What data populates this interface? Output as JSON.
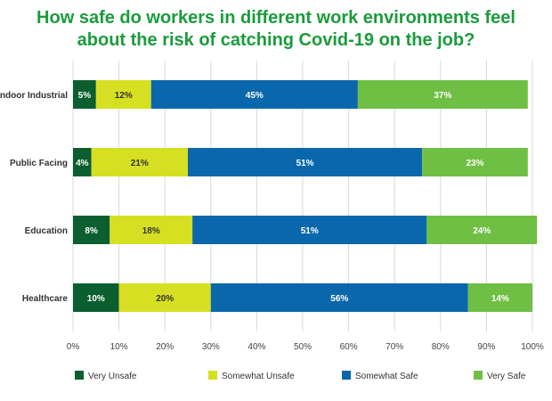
{
  "title_lines": [
    "How safe do workers in different work environments feel",
    "about the risk of catching Covid-19 on the job?"
  ],
  "title_color": "#1a9c3a",
  "chart_data": {
    "type": "bar",
    "orientation": "horizontal",
    "stacked": true,
    "title": "How safe do workers in different work environments feel about the risk of catching Covid-19 on the job?",
    "categories": [
      "Indoor Industrial",
      "Public Facing",
      "Education",
      "Healthcare"
    ],
    "series": [
      {
        "name": "Very Unsafe",
        "color": "#0b5e2e",
        "label_color": "#ffffff",
        "values": [
          5,
          4,
          8,
          10
        ]
      },
      {
        "name": "Somewhat Unsafe",
        "color": "#d6df22",
        "label_color": "#333333",
        "values": [
          12,
          21,
          18,
          20
        ]
      },
      {
        "name": "Somewhat Safe",
        "color": "#0b67ab",
        "label_color": "#ffffff",
        "values": [
          45,
          51,
          51,
          56
        ]
      },
      {
        "name": "Very Safe",
        "color": "#6fbf44",
        "label_color": "#ffffff",
        "values": [
          37,
          23,
          24,
          14
        ]
      }
    ],
    "xlim": [
      0,
      100
    ],
    "x_ticks": [
      "0%",
      "10%",
      "20%",
      "30%",
      "40%",
      "50%",
      "60%",
      "70%",
      "80%",
      "90%",
      "100%"
    ],
    "value_suffix": "%",
    "grid": true,
    "legend_position": "bottom"
  }
}
